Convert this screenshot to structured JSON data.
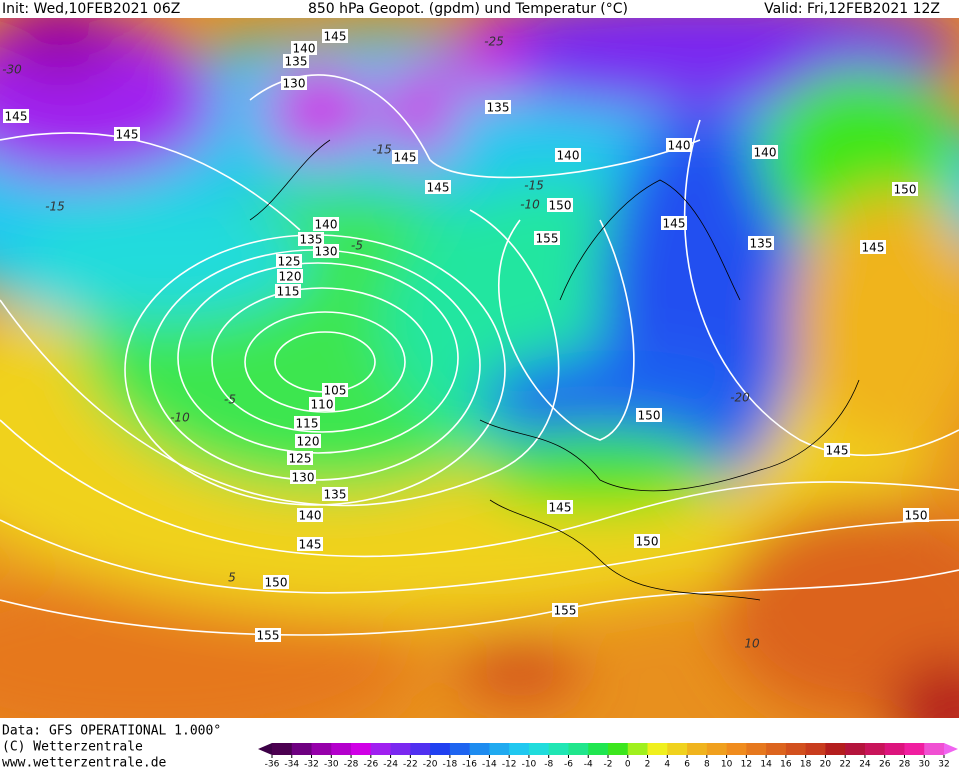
{
  "header": {
    "init": "Init: Wed,10FEB2021 06Z",
    "title": "850 hPa Geopot. (gpdm) und Temperatur (°C)",
    "valid": "Valid: Fri,12FEB2021 12Z"
  },
  "footer": {
    "data_line": "Data: GFS OPERATIONAL 1.000°",
    "copyright": "(C) Wetterzentrale",
    "url": "www.wetterzentrale.de"
  },
  "contour_labels": [
    "145",
    "140",
    "135",
    "130",
    "145",
    "145",
    "135",
    "145",
    "140",
    "140",
    "140",
    "145",
    "150",
    "150",
    "140",
    "135",
    "130",
    "125",
    "120",
    "115",
    "155",
    "145",
    "135",
    "145",
    "105",
    "110",
    "115",
    "120",
    "125",
    "130",
    "135",
    "140",
    "145",
    "150",
    "155",
    "150",
    "145",
    "145",
    "150",
    "150",
    "155"
  ],
  "temperature_labels": [
    "-30",
    "-25",
    "-15",
    "-15",
    "-10",
    "-5",
    "-15",
    "-10",
    "-5",
    "-20",
    "5",
    "10"
  ],
  "legend": {
    "labels": [
      -36,
      -34,
      -32,
      -30,
      -28,
      -26,
      -24,
      -22,
      -20,
      -18,
      -16,
      -14,
      -12,
      -10,
      -8,
      -6,
      -4,
      -2,
      0,
      2,
      4,
      6,
      8,
      10,
      12,
      14,
      16,
      18,
      20,
      22,
      24,
      26,
      28,
      30,
      32
    ],
    "colors": [
      "#3c0046",
      "#4b0050",
      "#6e0080",
      "#9600aa",
      "#b400cc",
      "#d000e6",
      "#a020f0",
      "#7a28f0",
      "#5030f0",
      "#2040f0",
      "#1e64f0",
      "#1e8cf0",
      "#20aaf0",
      "#20c8f0",
      "#20dcdc",
      "#20e6b4",
      "#20e68c",
      "#20e650",
      "#3ce61e",
      "#a0f01e",
      "#f0f01e",
      "#f0d21e",
      "#f0b41e",
      "#f0a01e",
      "#f08c1e",
      "#e6781e",
      "#dc641e",
      "#d2501e",
      "#c83c1e",
      "#b41e1e",
      "#b4143c",
      "#c8145a",
      "#dc147d",
      "#f01ea0",
      "#f050d2",
      "#f064f0"
    ]
  }
}
